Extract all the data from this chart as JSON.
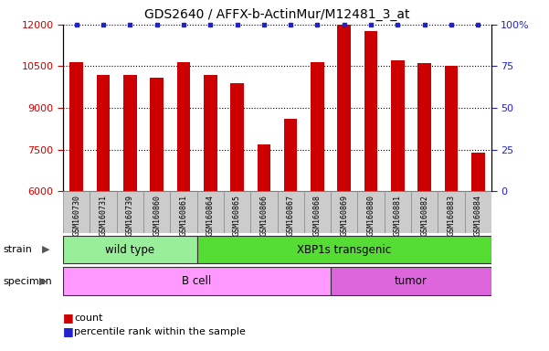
{
  "title": "GDS2640 / AFFX-b-ActinMur/M12481_3_at",
  "samples": [
    "GSM160730",
    "GSM160731",
    "GSM160739",
    "GSM160860",
    "GSM160861",
    "GSM160864",
    "GSM160865",
    "GSM160866",
    "GSM160867",
    "GSM160868",
    "GSM160869",
    "GSM160880",
    "GSM160881",
    "GSM160882",
    "GSM160883",
    "GSM160884"
  ],
  "counts": [
    10650,
    10200,
    10200,
    10100,
    10650,
    10200,
    9900,
    7700,
    8600,
    10650,
    12000,
    11750,
    10700,
    10600,
    10500,
    7400
  ],
  "bar_color": "#cc0000",
  "percentile_color": "#2222cc",
  "ylim_left": [
    6000,
    12000
  ],
  "ylim_right": [
    0,
    100
  ],
  "yticks_left": [
    6000,
    7500,
    9000,
    10500,
    12000
  ],
  "yticks_right": [
    0,
    25,
    50,
    75,
    100
  ],
  "ytick_right_labels": [
    "0",
    "25",
    "50",
    "75",
    "100%"
  ],
  "grid_values": [
    7500,
    9000,
    10500,
    12000
  ],
  "strain_groups": [
    {
      "label": "wild type",
      "start": 0,
      "end": 4,
      "color": "#99ee99"
    },
    {
      "label": "XBP1s transgenic",
      "start": 5,
      "end": 15,
      "color": "#55dd33"
    }
  ],
  "specimen_groups": [
    {
      "label": "B cell",
      "start": 0,
      "end": 9,
      "color": "#ff99ff"
    },
    {
      "label": "tumor",
      "start": 10,
      "end": 15,
      "color": "#dd66dd"
    }
  ],
  "strain_label": "strain",
  "specimen_label": "specimen",
  "legend_count_label": "count",
  "legend_percentile_label": "percentile rank within the sample",
  "background_color": "#ffffff",
  "tick_label_bg": "#cccccc",
  "bar_width": 0.5
}
